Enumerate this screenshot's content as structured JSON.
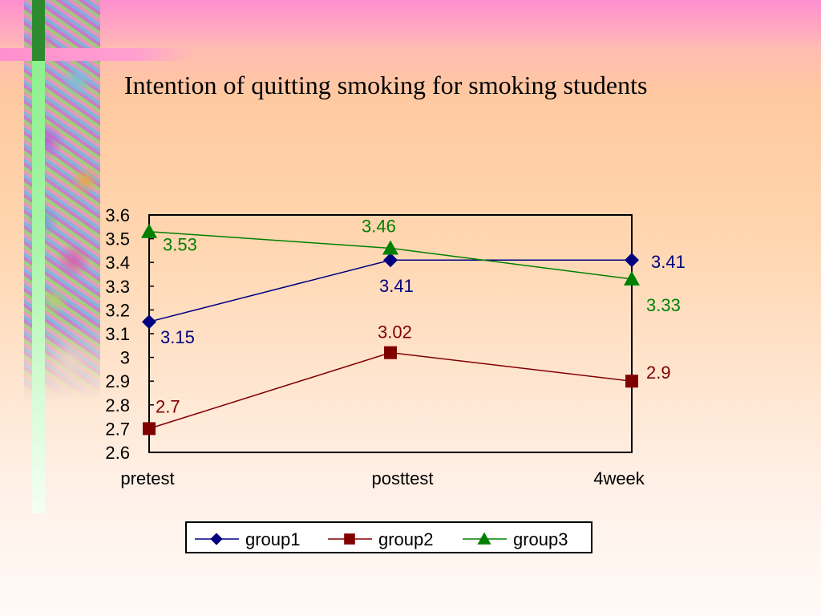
{
  "slide": {
    "title": "Intention of quitting smoking for smoking students"
  },
  "chart_data": {
    "type": "line",
    "title": "",
    "categories": [
      "pretest",
      "posttest",
      "4week"
    ],
    "ylim": [
      2.6,
      3.6
    ],
    "yticks": [
      "3.6",
      "3.5",
      "3.4",
      "3.3",
      "3.2",
      "3.1",
      "3",
      "2.9",
      "2.8",
      "2.7",
      "2.6"
    ],
    "grid": false,
    "legend_position": "bottom",
    "series": [
      {
        "name": "group1",
        "values": [
          3.15,
          3.41,
          3.41
        ],
        "labels": [
          "3.15",
          "3.41",
          "3.41"
        ],
        "color": "#000080",
        "marker": "diamond"
      },
      {
        "name": "group2",
        "values": [
          2.7,
          3.02,
          2.9
        ],
        "labels": [
          "2.7",
          "3.02",
          "2.9"
        ],
        "color": "#800000",
        "marker": "square"
      },
      {
        "name": "group3",
        "values": [
          3.53,
          3.46,
          3.33
        ],
        "labels": [
          "3.53",
          "3.46",
          "3.33"
        ],
        "color": "#008000",
        "marker": "triangle"
      }
    ]
  }
}
